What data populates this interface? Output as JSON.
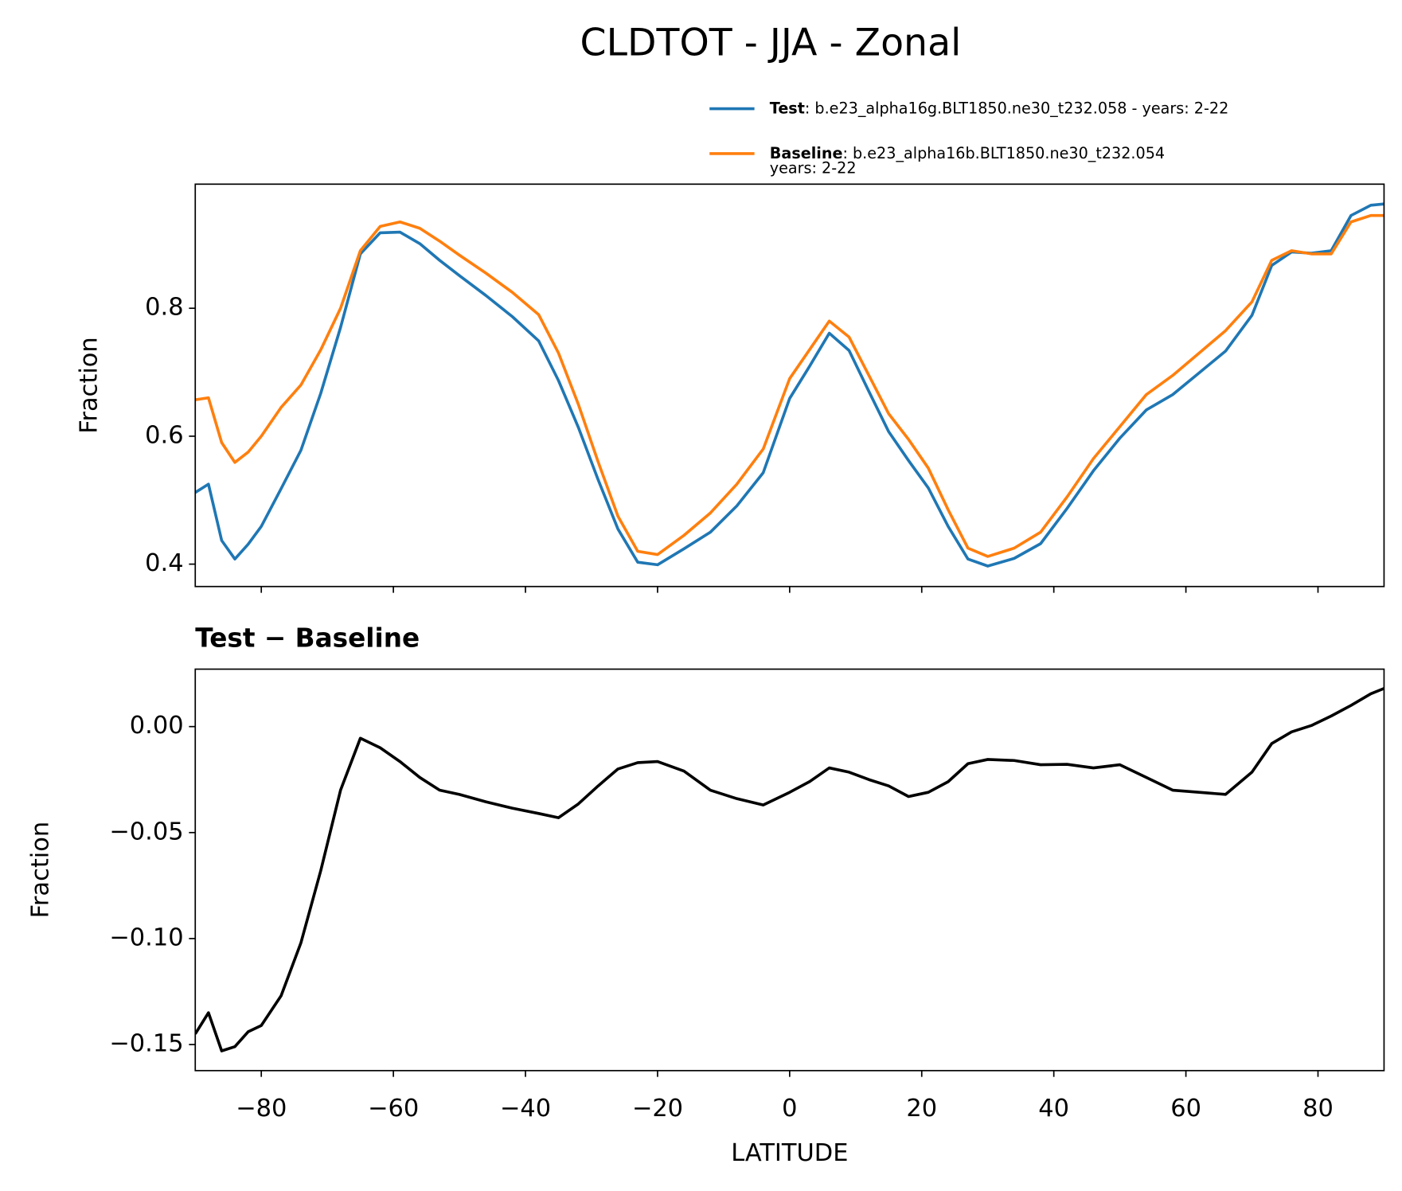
{
  "title": "CLDTOT - JJA - Zonal",
  "chart_data": [
    {
      "type": "line",
      "ylabel": "Fraction",
      "x": [
        -90,
        -88,
        -86,
        -84,
        -82,
        -80,
        -77,
        -74,
        -71,
        -68,
        -65,
        -62,
        -59,
        -56,
        -53,
        -50,
        -46,
        -42,
        -38,
        -35,
        -32,
        -29,
        -26,
        -23,
        -20,
        -16,
        -12,
        -8,
        -4,
        0,
        3,
        6,
        9,
        12,
        15,
        18,
        21,
        24,
        27,
        30,
        34,
        38,
        42,
        46,
        50,
        54,
        58,
        62,
        66,
        70,
        73,
        76,
        79,
        82,
        85,
        88,
        90
      ],
      "series": [
        {
          "name": "Test",
          "description": [
            ": b.e23_alpha16g.BLT1850.ne30_t232.058 - years: 2-22"
          ],
          "color": "#1f77b4",
          "values": [
            0.512,
            0.525,
            0.437,
            0.408,
            0.431,
            0.459,
            0.518,
            0.578,
            0.667,
            0.77,
            0.885,
            0.918,
            0.919,
            0.901,
            0.875,
            0.851,
            0.82,
            0.787,
            0.749,
            0.687,
            0.614,
            0.532,
            0.455,
            0.403,
            0.399,
            0.424,
            0.45,
            0.491,
            0.543,
            0.659,
            0.709,
            0.761,
            0.734,
            0.67,
            0.607,
            0.562,
            0.519,
            0.459,
            0.408,
            0.397,
            0.409,
            0.432,
            0.487,
            0.546,
            0.597,
            0.641,
            0.665,
            0.699,
            0.733,
            0.789,
            0.867,
            0.888,
            0.886,
            0.89,
            0.945,
            0.961,
            0.963
          ]
        },
        {
          "name": "Baseline",
          "description": [
            ": b.e23_alpha16b.BLT1850.ne30_t232.054",
            "years: 2-22"
          ],
          "color": "#ff7f0e",
          "values": [
            0.657,
            0.66,
            0.59,
            0.559,
            0.575,
            0.6,
            0.645,
            0.68,
            0.735,
            0.8,
            0.89,
            0.928,
            0.935,
            0.925,
            0.905,
            0.883,
            0.855,
            0.825,
            0.79,
            0.73,
            0.65,
            0.56,
            0.475,
            0.42,
            0.415,
            0.445,
            0.48,
            0.525,
            0.58,
            0.69,
            0.735,
            0.78,
            0.755,
            0.695,
            0.635,
            0.595,
            0.55,
            0.485,
            0.425,
            0.412,
            0.425,
            0.45,
            0.505,
            0.565,
            0.615,
            0.665,
            0.695,
            0.73,
            0.765,
            0.81,
            0.875,
            0.89,
            0.885,
            0.885,
            0.935,
            0.945,
            0.945
          ]
        }
      ],
      "xlim": [
        -90,
        90
      ],
      "ylim": [
        0.365,
        0.994
      ],
      "yticks": [
        0.4,
        0.6,
        0.8
      ]
    },
    {
      "type": "line",
      "title": "Test − Baseline",
      "xlabel": "LATITUDE",
      "ylabel": "Fraction",
      "x": [
        -90,
        -88,
        -86,
        -84,
        -82,
        -80,
        -77,
        -74,
        -71,
        -68,
        -65,
        -62,
        -59,
        -56,
        -53,
        -50,
        -46,
        -42,
        -38,
        -35,
        -32,
        -29,
        -26,
        -23,
        -20,
        -16,
        -12,
        -8,
        -4,
        0,
        3,
        6,
        9,
        12,
        15,
        18,
        21,
        24,
        27,
        30,
        34,
        38,
        42,
        46,
        50,
        54,
        58,
        62,
        66,
        70,
        73,
        76,
        79,
        82,
        85,
        88,
        90
      ],
      "color": "#000000",
      "values": [
        -0.145,
        -0.135,
        -0.153,
        -0.151,
        -0.144,
        -0.141,
        -0.127,
        -0.102,
        -0.068,
        -0.03,
        -0.0055,
        -0.01,
        -0.0165,
        -0.024,
        -0.03,
        -0.032,
        -0.0355,
        -0.0385,
        -0.041,
        -0.043,
        -0.0365,
        -0.028,
        -0.02,
        -0.017,
        -0.0165,
        -0.021,
        -0.03,
        -0.034,
        -0.037,
        -0.031,
        -0.026,
        -0.0195,
        -0.0215,
        -0.025,
        -0.028,
        -0.033,
        -0.031,
        -0.026,
        -0.0175,
        -0.0155,
        -0.016,
        -0.018,
        -0.0178,
        -0.0195,
        -0.018,
        -0.024,
        -0.03,
        -0.031,
        -0.032,
        -0.0215,
        -0.008,
        -0.0025,
        0.0005,
        0.005,
        0.01,
        0.0155,
        0.018
      ],
      "xlim": [
        -90,
        90
      ],
      "ylim": [
        -0.1623,
        0.0271
      ],
      "yticks": [
        {
          "value": -0.15,
          "label": "−0.15"
        },
        {
          "value": -0.1,
          "label": "−0.10"
        },
        {
          "value": -0.05,
          "label": "−0.05"
        },
        {
          "value": 0,
          "label": "0.00"
        }
      ],
      "xticks": [
        {
          "value": -80,
          "label": "−80"
        },
        {
          "value": -60,
          "label": "−60"
        },
        {
          "value": -40,
          "label": "−40"
        },
        {
          "value": -20,
          "label": "−20"
        },
        0,
        20,
        40,
        60,
        80
      ]
    }
  ]
}
